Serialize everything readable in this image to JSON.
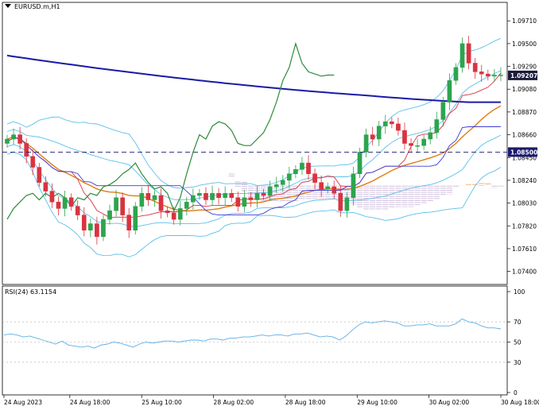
{
  "symbol_title": "EURUSD.m,H1",
  "indicator_title": "RSI(24) 63.1154",
  "colors": {
    "up": "#2da44e",
    "down": "#d9333f",
    "bollinger": "#5bc0eb",
    "tenkan": "#d9333f",
    "kijun": "#3a3ad6",
    "sma200": "#1a1aa8",
    "sma_orange": "#e07b12",
    "chikou": "#2e8b3a",
    "cloud_a": "#f2a36b",
    "cloud_b": "#c8b6d9",
    "rsi": "#5aaee8",
    "level": "#1a1a6e"
  },
  "chart_data": [
    {
      "type": "candlestick",
      "symbol": "EURUSD.m",
      "timeframe": "H1",
      "ylim": [
        1.0728,
        1.0988
      ],
      "y_ticks": [
        "1.09710",
        "1.09500",
        "1.09290",
        "1.09080",
        "1.08870",
        "1.08660",
        "1.08450",
        "1.08240",
        "1.08030",
        "1.07820",
        "1.07610",
        "1.07400"
      ],
      "x_ticks": [
        "24 Aug 2023",
        "24 Aug 18:00",
        "25 Aug 10:00",
        "28 Aug 02:00",
        "28 Aug 18:00",
        "29 Aug 10:00",
        "30 Aug 02:00",
        "30 Aug 18:00"
      ],
      "current_price": "1.09207",
      "level_line": "1.08500",
      "closes": [
        1.0862,
        1.0866,
        1.0858,
        1.0846,
        1.0836,
        1.0822,
        1.0814,
        1.0804,
        1.0798,
        1.0808,
        1.08,
        1.0792,
        1.0778,
        1.0784,
        1.0772,
        1.0788,
        1.0796,
        1.0808,
        1.0792,
        1.0778,
        1.08,
        1.0812,
        1.0806,
        1.081,
        1.0796,
        1.0794,
        1.0788,
        1.0798,
        1.0804,
        1.081,
        1.0812,
        1.0806,
        1.0812,
        1.0808,
        1.0812,
        1.0808,
        1.08,
        1.0808,
        1.0806,
        1.0812,
        1.081,
        1.0818,
        1.082,
        1.0824,
        1.083,
        1.0834,
        1.084,
        1.083,
        1.0822,
        1.0816,
        1.0818,
        1.0812,
        1.0796,
        1.0808,
        1.083,
        1.085,
        1.0866,
        1.0862,
        1.0874,
        1.0878,
        1.0876,
        1.087,
        1.0858,
        1.0856,
        1.0856,
        1.0862,
        1.0868,
        1.088,
        1.0896,
        1.0916,
        1.0928,
        1.095,
        1.0932,
        1.0924,
        1.0922,
        1.092,
        1.0921,
        1.0921
      ]
    },
    {
      "type": "line",
      "indicator": "RSI(24)",
      "value": "63.1154",
      "ylim": [
        0,
        100
      ],
      "y_ticks": [
        "100",
        "70",
        "50",
        "30",
        "0"
      ],
      "values": [
        57,
        58,
        57,
        55,
        56,
        54,
        52,
        50,
        48,
        51,
        47,
        46,
        45,
        46,
        44,
        47,
        48,
        50,
        49,
        47,
        45,
        48,
        50,
        49,
        50,
        51,
        51,
        50,
        51,
        52,
        52,
        51,
        53,
        53,
        52,
        54,
        54,
        55,
        55,
        56,
        57,
        56,
        57,
        57,
        56,
        58,
        58,
        59,
        57,
        55,
        56,
        55,
        52,
        56,
        62,
        67,
        70,
        69,
        70,
        71,
        70,
        69,
        66,
        66,
        67,
        67,
        68,
        66,
        66,
        66,
        68,
        73,
        70,
        69,
        66,
        64,
        64,
        63
      ]
    }
  ]
}
